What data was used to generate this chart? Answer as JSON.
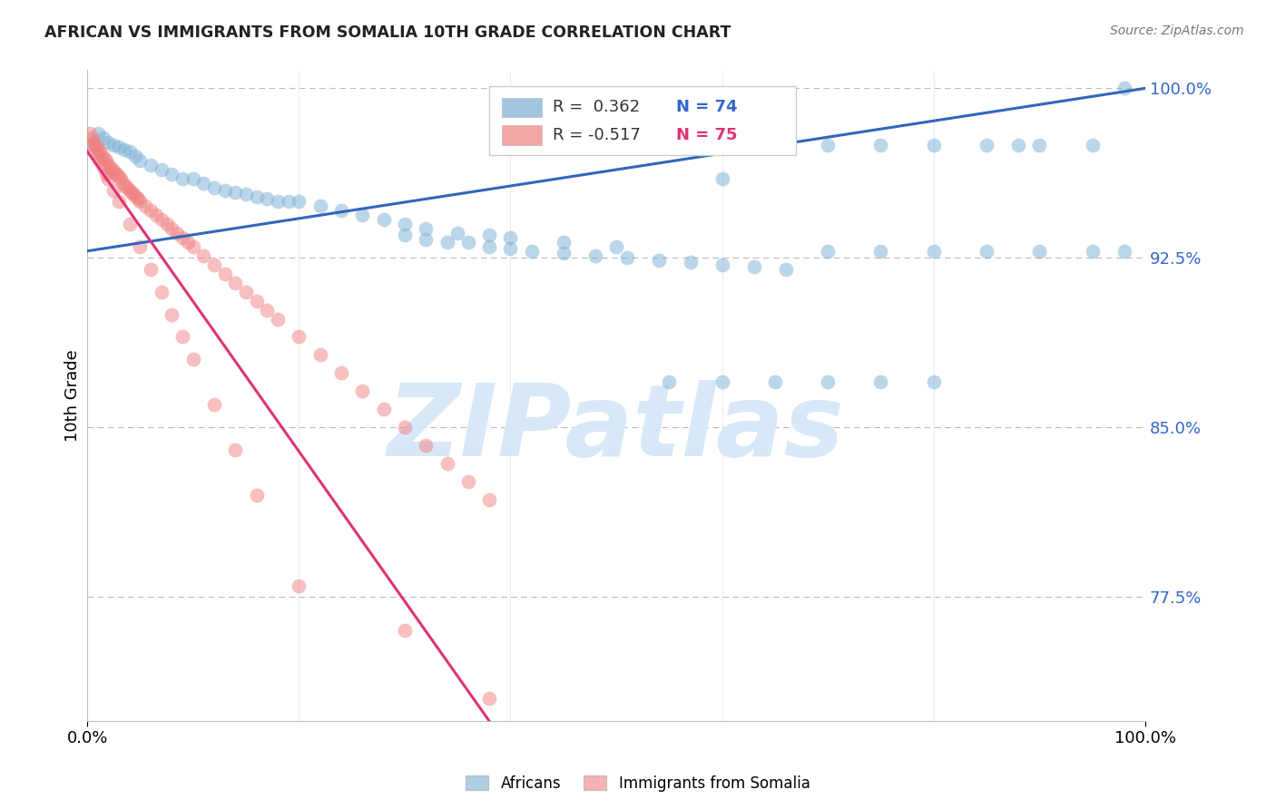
{
  "title": "AFRICAN VS IMMIGRANTS FROM SOMALIA 10TH GRADE CORRELATION CHART",
  "source": "Source: ZipAtlas.com",
  "ylabel": "10th Grade",
  "xlim": [
    0.0,
    1.0
  ],
  "ylim": [
    0.72,
    1.008
  ],
  "right_ytick_labels": [
    "100.0%",
    "92.5%",
    "85.0%",
    "77.5%"
  ],
  "right_ytick_values": [
    1.0,
    0.925,
    0.85,
    0.775
  ],
  "legend_blue_r": "R =  0.362",
  "legend_blue_n": "N = 74",
  "legend_pink_r": "R = -0.517",
  "legend_pink_n": "N = 75",
  "blue_color": "#7BAFD4",
  "pink_color": "#F08080",
  "blue_line_color": "#3366BB",
  "pink_line_color": "#DD3377",
  "watermark_text": "ZIPatlas",
  "watermark_color": "#D8E8F8",
  "blue_line_x0": 0.0,
  "blue_line_y0": 0.928,
  "blue_line_x1": 1.0,
  "blue_line_y1": 1.0,
  "pink_line_x0": 0.0,
  "pink_line_y0": 0.972,
  "pink_line_x1": 0.38,
  "pink_line_y1": 0.72,
  "blue_scatter_x": [
    0.005,
    0.01,
    0.015,
    0.02,
    0.025,
    0.03,
    0.035,
    0.04,
    0.045,
    0.05,
    0.06,
    0.07,
    0.08,
    0.09,
    0.1,
    0.11,
    0.12,
    0.13,
    0.14,
    0.15,
    0.16,
    0.17,
    0.18,
    0.19,
    0.2,
    0.22,
    0.24,
    0.26,
    0.28,
    0.3,
    0.32,
    0.35,
    0.38,
    0.4,
    0.45,
    0.5,
    0.6,
    0.65,
    0.7,
    0.75,
    0.8,
    0.85,
    0.88,
    0.9,
    0.95,
    0.98,
    0.3,
    0.32,
    0.34,
    0.36,
    0.38,
    0.4,
    0.42,
    0.45,
    0.48,
    0.51,
    0.54,
    0.57,
    0.6,
    0.63,
    0.66,
    0.7,
    0.75,
    0.8,
    0.85,
    0.9,
    0.95,
    0.98,
    0.55,
    0.6,
    0.65,
    0.7,
    0.75,
    0.8
  ],
  "blue_scatter_y": [
    0.975,
    0.98,
    0.978,
    0.976,
    0.975,
    0.974,
    0.973,
    0.972,
    0.97,
    0.968,
    0.966,
    0.964,
    0.962,
    0.96,
    0.96,
    0.958,
    0.956,
    0.955,
    0.954,
    0.953,
    0.952,
    0.951,
    0.95,
    0.95,
    0.95,
    0.948,
    0.946,
    0.944,
    0.942,
    0.94,
    0.938,
    0.936,
    0.935,
    0.934,
    0.932,
    0.93,
    0.96,
    0.975,
    0.975,
    0.975,
    0.975,
    0.975,
    0.975,
    0.975,
    0.975,
    1.0,
    0.935,
    0.933,
    0.932,
    0.932,
    0.93,
    0.929,
    0.928,
    0.927,
    0.926,
    0.925,
    0.924,
    0.923,
    0.922,
    0.921,
    0.92,
    0.928,
    0.928,
    0.928,
    0.928,
    0.928,
    0.928,
    0.928,
    0.87,
    0.87,
    0.87,
    0.87,
    0.87,
    0.87
  ],
  "pink_scatter_x": [
    0.002,
    0.004,
    0.006,
    0.008,
    0.01,
    0.012,
    0.014,
    0.016,
    0.018,
    0.02,
    0.022,
    0.024,
    0.026,
    0.028,
    0.03,
    0.032,
    0.034,
    0.036,
    0.038,
    0.04,
    0.042,
    0.044,
    0.046,
    0.048,
    0.05,
    0.055,
    0.06,
    0.065,
    0.07,
    0.075,
    0.08,
    0.085,
    0.09,
    0.095,
    0.1,
    0.11,
    0.12,
    0.13,
    0.14,
    0.15,
    0.16,
    0.17,
    0.18,
    0.2,
    0.22,
    0.24,
    0.26,
    0.28,
    0.3,
    0.32,
    0.34,
    0.36,
    0.38,
    0.005,
    0.008,
    0.01,
    0.012,
    0.015,
    0.018,
    0.02,
    0.025,
    0.03,
    0.04,
    0.05,
    0.06,
    0.07,
    0.08,
    0.09,
    0.1,
    0.12,
    0.14,
    0.16,
    0.2,
    0.3,
    0.38
  ],
  "pink_scatter_y": [
    0.98,
    0.978,
    0.976,
    0.975,
    0.973,
    0.972,
    0.97,
    0.969,
    0.968,
    0.966,
    0.965,
    0.964,
    0.963,
    0.962,
    0.961,
    0.96,
    0.958,
    0.957,
    0.956,
    0.955,
    0.954,
    0.953,
    0.952,
    0.951,
    0.95,
    0.948,
    0.946,
    0.944,
    0.942,
    0.94,
    0.938,
    0.936,
    0.934,
    0.932,
    0.93,
    0.926,
    0.922,
    0.918,
    0.914,
    0.91,
    0.906,
    0.902,
    0.898,
    0.89,
    0.882,
    0.874,
    0.866,
    0.858,
    0.85,
    0.842,
    0.834,
    0.826,
    0.818,
    0.975,
    0.972,
    0.97,
    0.968,
    0.965,
    0.962,
    0.96,
    0.955,
    0.95,
    0.94,
    0.93,
    0.92,
    0.91,
    0.9,
    0.89,
    0.88,
    0.86,
    0.84,
    0.82,
    0.78,
    0.76,
    0.73
  ]
}
